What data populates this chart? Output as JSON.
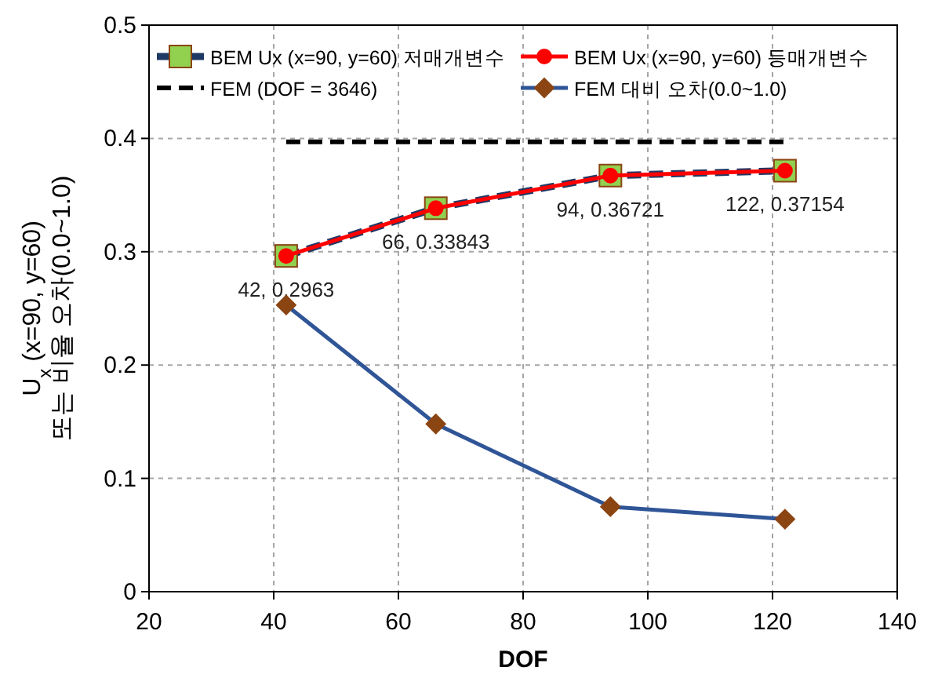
{
  "chart_data": {
    "type": "line",
    "xlabel": "DOF",
    "ylabel": "U$_{x}$ (x=90, y=60) 또는 비율 오차(0.0~1.0)",
    "xlim": [
      20,
      140
    ],
    "xticks": [
      20,
      40,
      60,
      80,
      100,
      120,
      140
    ],
    "ylim": [
      0,
      0.5
    ],
    "yticks": [
      0,
      0.1,
      0.2,
      0.3,
      0.4,
      0.5
    ],
    "grid": true,
    "legend": "top",
    "series": [
      {
        "name": "BEM Ux (x=90, y=60) 저매개변수",
        "color": "#1f3864",
        "colors": [
          "#92d050",
          "#92d050",
          "#92d050",
          "#92d050"
        ],
        "marker": "square",
        "line_style": "dashed",
        "x": [
          42,
          66,
          94,
          122
        ],
        "values": [
          0.2963,
          0.33843,
          0.36721,
          0.37154
        ]
      },
      {
        "name": "BEM Ux (x=90, y=60) 등매개변수",
        "color": "#ff0000",
        "marker": "circle",
        "line_style": "solid",
        "x": [
          42,
          66,
          94,
          122
        ],
        "values": [
          0.2963,
          0.33843,
          0.36721,
          0.37154
        ],
        "value_labels": [
          "42, 0.2963",
          "66, 0.33843",
          "94, 0.36721",
          "122, 0.37154"
        ]
      },
      {
        "name": "FEM (DOF = 3646)",
        "color": "#000000",
        "marker": "none",
        "line_style": "dashed",
        "x": [
          42,
          122
        ],
        "values": [
          0.397,
          0.397
        ]
      },
      {
        "name": "FEM 대비 오차(0.0~1.0)",
        "color": "#2f5597",
        "colors": [
          "#8b4513",
          "#8b4513",
          "#8b4513",
          "#8b4513"
        ],
        "marker": "diamond",
        "line_style": "solid",
        "x": [
          42,
          66,
          94,
          122
        ],
        "values": [
          0.253,
          0.148,
          0.075,
          0.064
        ]
      }
    ]
  }
}
